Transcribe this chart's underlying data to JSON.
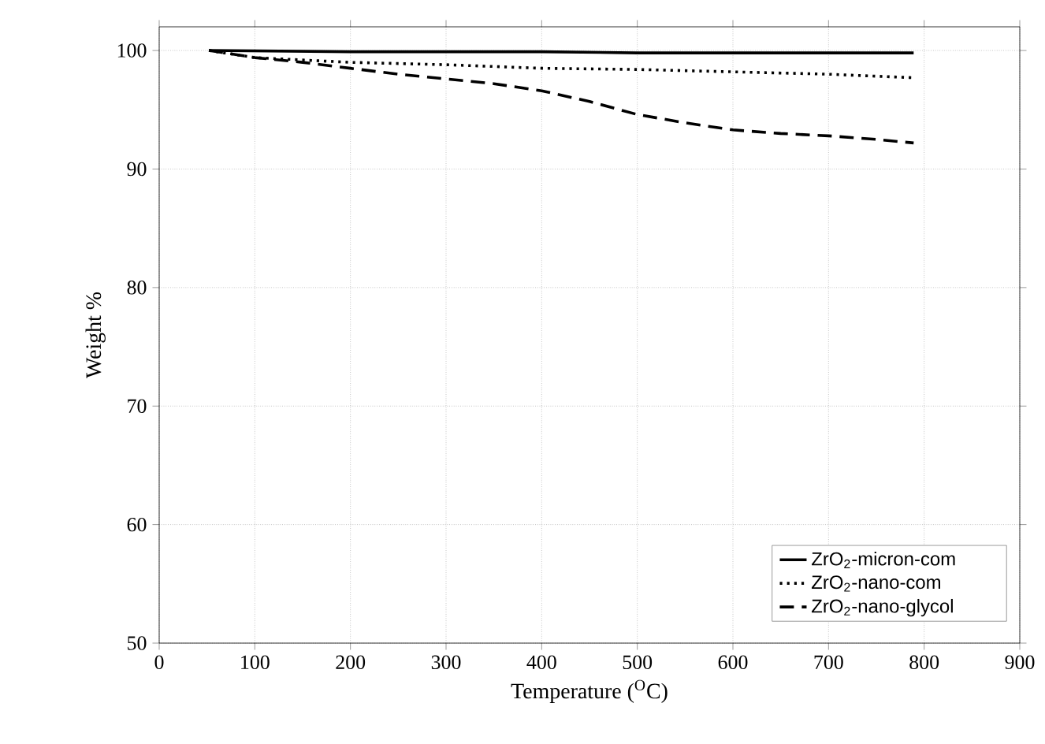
{
  "chart_data": {
    "type": "line",
    "xlabel": "Temperature ($^{O}$C)",
    "ylabel": "Weight %",
    "xlim": [
      0,
      900
    ],
    "xticks": [
      0,
      100,
      200,
      300,
      400,
      500,
      600,
      700,
      800,
      900
    ],
    "ylim": [
      50,
      102
    ],
    "yticks": [
      50,
      60,
      70,
      80,
      90,
      100
    ],
    "grid": true,
    "legend": "bottom right",
    "marker": "none",
    "series": [
      {
        "name": "ZrO$_{2}$-micron-com",
        "color": "#000000",
        "line_style": "solid",
        "x": [
          52,
          200,
          400,
          500,
          600,
          789
        ],
        "values": [
          100,
          99.9,
          99.9,
          99.8,
          99.8,
          99.8
        ]
      },
      {
        "name": "ZrO$_{2}$-nano-com",
        "color": "#000000",
        "line_style": "dotted",
        "x": [
          52,
          100,
          200,
          300,
          400,
          500,
          600,
          700,
          789
        ],
        "values": [
          100,
          99.4,
          99.0,
          98.8,
          98.5,
          98.4,
          98.2,
          98.0,
          97.7
        ]
      },
      {
        "name": "ZrO$_{2}$-nano-glycol",
        "color": "#000000",
        "line_style": "dashed",
        "x": [
          52,
          100,
          150,
          200,
          250,
          300,
          350,
          400,
          450,
          500,
          550,
          600,
          650,
          700,
          750,
          789
        ],
        "values": [
          100,
          99.4,
          99.0,
          98.5,
          98.0,
          97.6,
          97.2,
          96.6,
          95.7,
          94.6,
          93.9,
          93.3,
          93.0,
          92.8,
          92.5,
          92.2
        ]
      }
    ]
  }
}
